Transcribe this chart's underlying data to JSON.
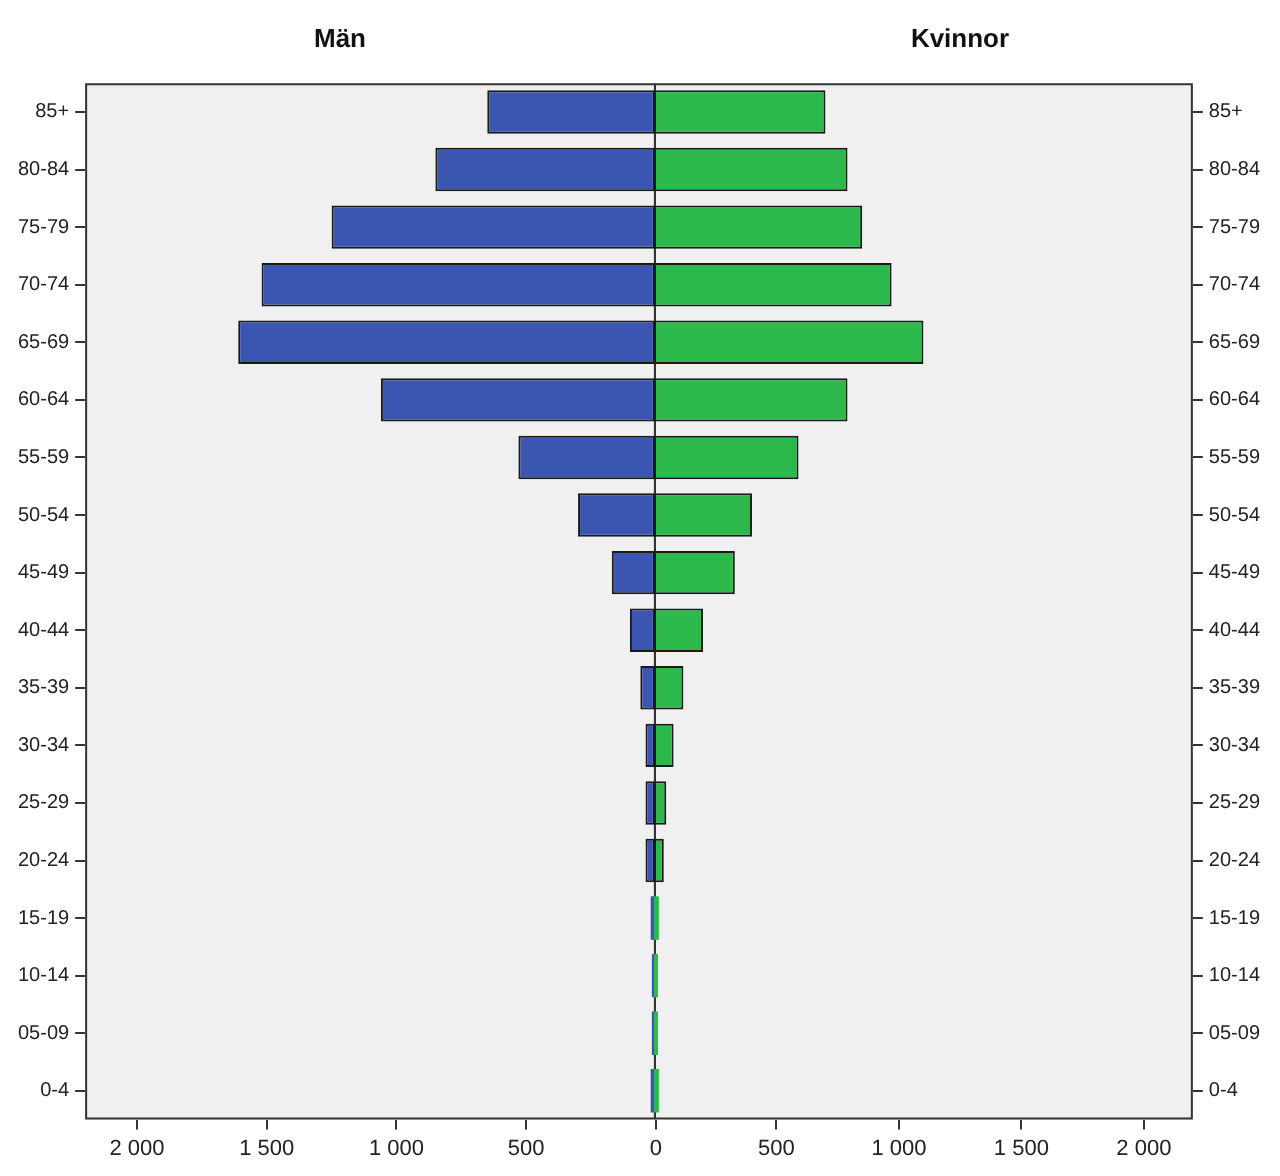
{
  "chart_data": [
    {
      "type": "bar",
      "orientation": "horizontal",
      "title": "Män",
      "categories": [
        "85+",
        "80-84",
        "75-79",
        "70-74",
        "65-69",
        "60-64",
        "55-59",
        "50-54",
        "45-49",
        "40-44",
        "35-39",
        "30-34",
        "25-29",
        "20-24",
        "15-19",
        "10-14",
        "05-09",
        "0-4"
      ],
      "series": [
        {
          "color": "#3b56b0",
          "values": [
            650,
            850,
            1250,
            1520,
            1610,
            1060,
            530,
            300,
            170,
            100,
            60,
            40,
            40,
            40,
            20,
            10,
            10,
            20
          ]
        }
      ],
      "xlim": [
        2200,
        0
      ],
      "xticks": [
        {
          "value": 2000,
          "label": "2 000"
        },
        {
          "value": 1500,
          "label": "1 500"
        },
        {
          "value": 1000,
          "label": "1 000"
        },
        {
          "value": 500,
          "label": "500"
        },
        {
          "value": 0,
          "label": "0"
        }
      ],
      "grid": false,
      "legend": false
    },
    {
      "type": "bar",
      "orientation": "horizontal",
      "title": "Kvinnor",
      "categories": [
        "85+",
        "80-84",
        "75-79",
        "70-74",
        "65-69",
        "60-64",
        "55-59",
        "50-54",
        "45-49",
        "40-44",
        "35-39",
        "30-34",
        "25-29",
        "20-24",
        "15-19",
        "10-14",
        "05-09",
        "0-4"
      ],
      "series": [
        {
          "color": "#2db84b",
          "values": [
            700,
            790,
            850,
            970,
            1100,
            790,
            590,
            400,
            330,
            200,
            120,
            80,
            50,
            40,
            20,
            10,
            10,
            20
          ]
        }
      ],
      "xlim": [
        0,
        2200
      ],
      "xticks": [
        500,
        {
          "value": 1000,
          "label": "1 000"
        },
        {
          "value": 1500,
          "label": "1 500"
        },
        {
          "value": 2000,
          "label": "2 000"
        }
      ],
      "grid": false,
      "legend": false
    }
  ]
}
